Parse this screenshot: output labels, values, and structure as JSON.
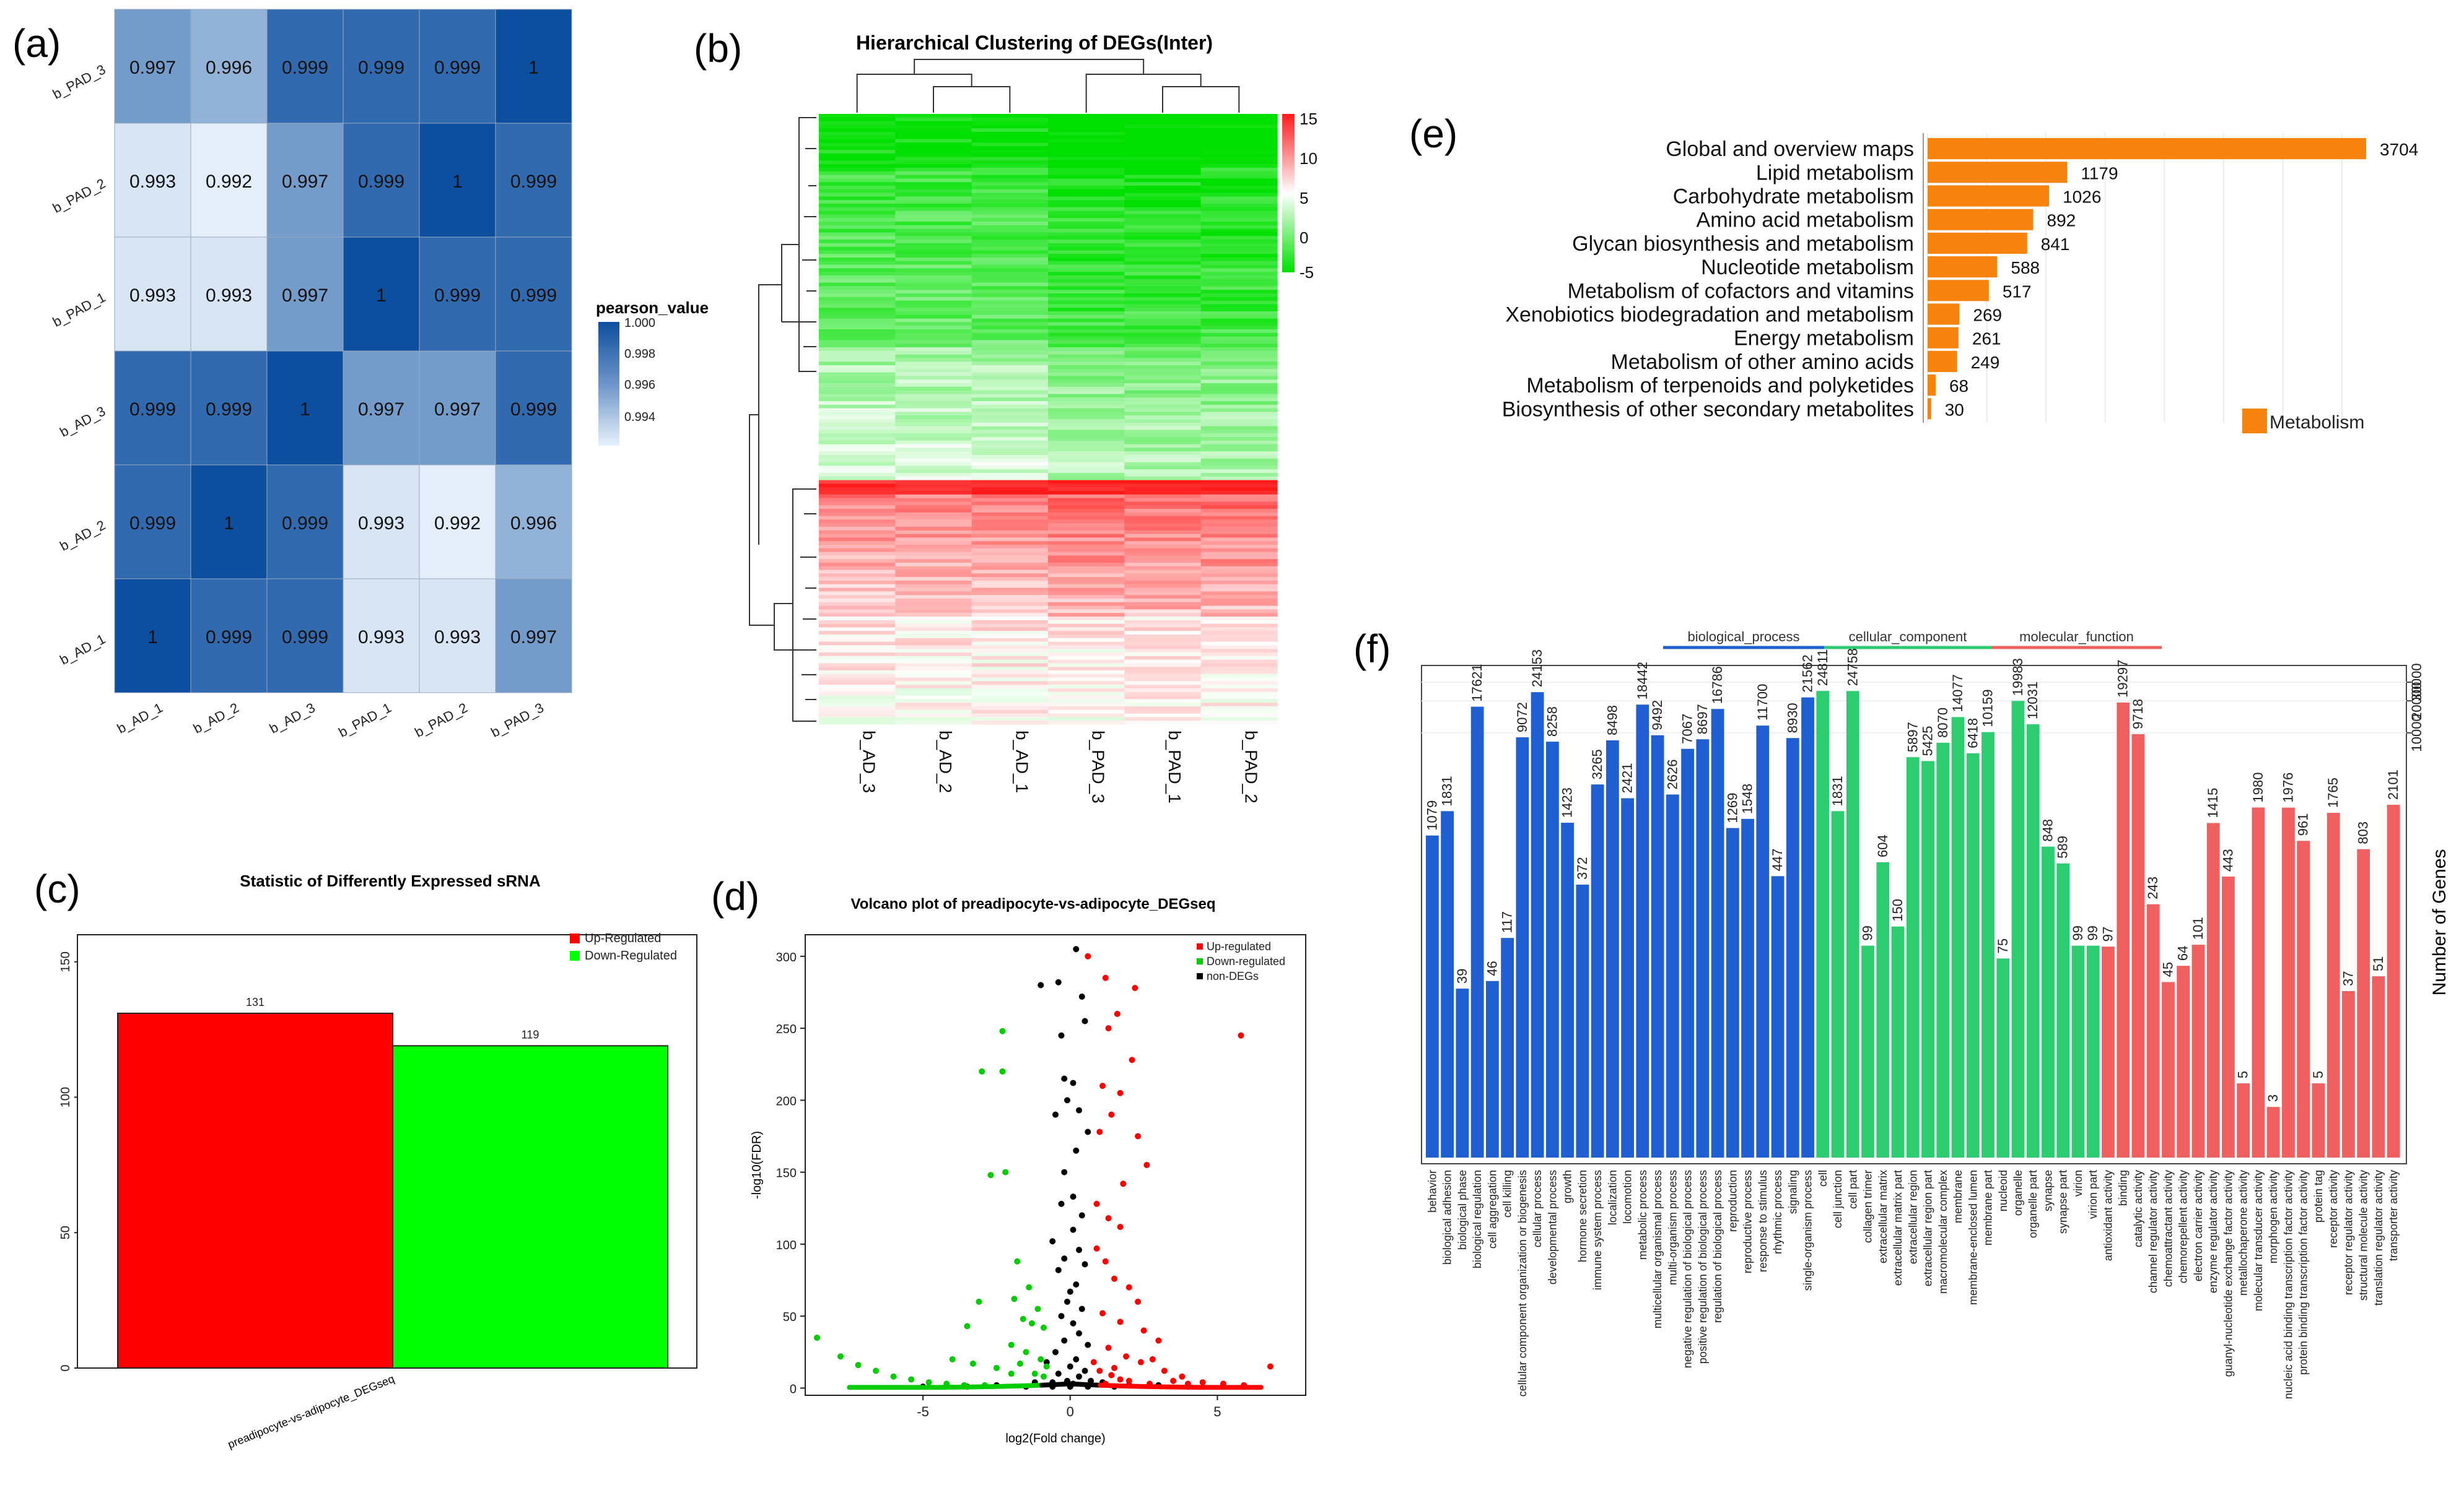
{
  "panels": {
    "a": {
      "label": "(a)",
      "row_labels": [
        "b_PAD_3",
        "b_PAD_2",
        "b_PAD_1",
        "b_AD_3",
        "b_AD_2",
        "b_AD_1"
      ],
      "col_labels": [
        "b_AD_1",
        "b_AD_2",
        "b_AD_3",
        "b_PAD_1",
        "b_PAD_2",
        "b_PAD_3"
      ],
      "matrix": [
        [
          "0.997",
          "0.996",
          "0.999",
          "0.999",
          "0.999",
          "1"
        ],
        [
          "0.993",
          "0.992",
          "0.997",
          "0.999",
          "1",
          "0.999"
        ],
        [
          "0.993",
          "0.993",
          "0.997",
          "1",
          "0.999",
          "0.999"
        ],
        [
          "0.999",
          "0.999",
          "1",
          "0.997",
          "0.997",
          "0.999"
        ],
        [
          "0.999",
          "1",
          "0.999",
          "0.993",
          "0.992",
          "0.996"
        ],
        [
          "1",
          "0.999",
          "0.999",
          "0.993",
          "0.993",
          "0.997"
        ]
      ],
      "legend_title": "pearson_value",
      "legend_ticks": [
        "1.000",
        "0.998",
        "0.996",
        "0.994"
      ],
      "colors": {
        "high": "#0d4f9e",
        "low": "#e6f1fb"
      }
    },
    "b": {
      "label": "(b)",
      "title": "Hierarchical Clustering of DEGs(Inter)",
      "col_labels": [
        "b_AD_3",
        "b_AD_2",
        "b_AD_1",
        "b_PAD_3",
        "b_PAD_1",
        "b_PAD_2"
      ],
      "scale_ticks": [
        "15",
        "10",
        "5",
        "0",
        "-5"
      ],
      "colors": {
        "up": "#ff1a1a",
        "mid": "#ffffff",
        "down": "#00e000"
      }
    },
    "c": {
      "label": "(c)",
      "title": "Statistic of Differently Expressed sRNA",
      "legend": [
        "Up-Regulated",
        "Down-Regulated"
      ],
      "category": "preadipocyte-vs-adipocyte_DEGseq",
      "values": [
        131,
        119
      ],
      "value_labels": [
        "131",
        "119"
      ],
      "yticks": [
        "0",
        "50",
        "100",
        "150"
      ],
      "colors": {
        "up": "#ff0000",
        "down": "#00ff00"
      }
    },
    "d": {
      "label": "(d)",
      "title": "Volcano plot of preadipocyte-vs-adipocyte_DEGseq",
      "xlabel": "log2(Fold change)",
      "ylabel": "-log10(FDR)",
      "xticks": [
        "-5",
        "0",
        "5"
      ],
      "yticks": [
        "0",
        "50",
        "100",
        "150",
        "200",
        "250",
        "300"
      ],
      "legend": [
        "Up-regulated",
        "Down-regulated",
        "non-DEGs"
      ],
      "colors": {
        "up": "#ff0000",
        "down": "#00cc00",
        "non": "#000000"
      }
    },
    "e": {
      "label": "(e)",
      "legend": "Metabolism",
      "color": "#f7830f"
    },
    "f": {
      "label": "(f)",
      "ylabel": "Number of Genes",
      "yticks": [
        "10000",
        "20000",
        "30000"
      ],
      "legend": [
        "biological_process",
        "cellular_component",
        "molecular_function"
      ],
      "colors": {
        "biological_process": "#1f5fd1",
        "cellular_component": "#2ecc71",
        "molecular_function": "#f16060"
      }
    }
  },
  "chart_data": [
    {
      "id": "a",
      "type": "heatmap",
      "title": "",
      "rows": [
        "b_PAD_3",
        "b_PAD_2",
        "b_PAD_1",
        "b_AD_3",
        "b_AD_2",
        "b_AD_1"
      ],
      "columns": [
        "b_AD_1",
        "b_AD_2",
        "b_AD_3",
        "b_PAD_1",
        "b_PAD_2",
        "b_PAD_3"
      ],
      "values": [
        [
          0.997,
          0.996,
          0.999,
          0.999,
          0.999,
          1
        ],
        [
          0.993,
          0.992,
          0.997,
          0.999,
          1,
          0.999
        ],
        [
          0.993,
          0.993,
          0.997,
          1,
          0.999,
          0.999
        ],
        [
          0.999,
          0.999,
          1,
          0.997,
          0.997,
          0.999
        ],
        [
          0.999,
          1,
          0.999,
          0.993,
          0.992,
          0.996
        ],
        [
          1,
          0.999,
          0.999,
          0.993,
          0.993,
          0.997
        ]
      ],
      "colorbar": {
        "title": "pearson_value",
        "range": [
          0.992,
          1.0
        ]
      }
    },
    {
      "id": "b",
      "type": "heatmap",
      "title": "Hierarchical Clustering of DEGs(Inter)",
      "columns": [
        "b_AD_3",
        "b_AD_2",
        "b_AD_1",
        "b_PAD_3",
        "b_PAD_1",
        "b_PAD_2"
      ],
      "colorbar": {
        "range": [
          -5,
          15
        ]
      }
    },
    {
      "id": "c",
      "type": "bar",
      "title": "Statistic of Differently Expressed sRNA",
      "categories": [
        "preadipocyte-vs-adipocyte_DEGseq"
      ],
      "series": [
        {
          "name": "Up-Regulated",
          "values": [
            131
          ]
        },
        {
          "name": "Down-Regulated",
          "values": [
            119
          ]
        }
      ],
      "ylim": [
        0,
        160
      ]
    },
    {
      "id": "d",
      "type": "scatter",
      "title": "Volcano plot of preadipocyte-vs-adipocyte_DEGseq",
      "xlabel": "log2(Fold change)",
      "ylabel": "-log10(FDR)",
      "xlim": [
        -9,
        8
      ],
      "ylim": [
        -5,
        315
      ],
      "series": [
        {
          "name": "Up-regulated",
          "points": [
            [
              0.6,
              300
            ],
            [
              1.2,
              285
            ],
            [
              2.2,
              278
            ],
            [
              1.6,
              260
            ],
            [
              1.3,
              250
            ],
            [
              2.1,
              228
            ],
            [
              1.1,
              210
            ],
            [
              1.7,
              205
            ],
            [
              1.4,
              190
            ],
            [
              2.3,
              175
            ],
            [
              1.0,
              178
            ],
            [
              2.6,
              155
            ],
            [
              1.8,
              142
            ],
            [
              0.9,
              128
            ],
            [
              1.3,
              118
            ],
            [
              1.7,
              112
            ],
            [
              0.9,
              97
            ],
            [
              1.2,
              88
            ],
            [
              1.5,
              76
            ],
            [
              2.0,
              70
            ],
            [
              2.3,
              60
            ],
            [
              1.1,
              52
            ],
            [
              1.7,
              46
            ],
            [
              2.5,
              40
            ],
            [
              3.0,
              33
            ],
            [
              1.3,
              28
            ],
            [
              1.9,
              22
            ],
            [
              2.4,
              18
            ],
            [
              3.2,
              12
            ],
            [
              3.8,
              8
            ],
            [
              4.5,
              4
            ],
            [
              5.2,
              3
            ],
            [
              5.9,
              2
            ],
            [
              6.8,
              15
            ],
            [
              5.8,
              245
            ],
            [
              0.8,
              18
            ],
            [
              1.0,
              12
            ],
            [
              1.4,
              9
            ],
            [
              1.7,
              6
            ],
            [
              2.0,
              5
            ],
            [
              2.7,
              3
            ],
            [
              1.2,
              3
            ],
            [
              1.5,
              14
            ],
            [
              2.8,
              20
            ],
            [
              3.5,
              5
            ],
            [
              4.0,
              3
            ]
          ]
        },
        {
          "name": "Down-regulated",
          "points": [
            [
              -8.6,
              35
            ],
            [
              -7.8,
              22
            ],
            [
              -7.2,
              16
            ],
            [
              -6.6,
              12
            ],
            [
              -6.0,
              8
            ],
            [
              -5.4,
              6
            ],
            [
              -4.8,
              4
            ],
            [
              -4.2,
              3
            ],
            [
              -3.6,
              2
            ],
            [
              -2.9,
              2
            ],
            [
              -3.5,
              43
            ],
            [
              -3.1,
              60
            ],
            [
              -2.7,
              148
            ],
            [
              -3.0,
              220
            ],
            [
              -2.3,
              248
            ],
            [
              -2.2,
              150
            ],
            [
              -1.8,
              88
            ],
            [
              -1.4,
              70
            ],
            [
              -1.9,
              62
            ],
            [
              -1.1,
              55
            ],
            [
              -1.6,
              48
            ],
            [
              -1.3,
              45
            ],
            [
              -0.9,
              42
            ],
            [
              -2.0,
              30
            ],
            [
              -1.5,
              25
            ],
            [
              -1.0,
              20
            ],
            [
              -0.8,
              15
            ],
            [
              -1.2,
              10
            ],
            [
              -2.5,
              14
            ],
            [
              -1.7,
              17
            ],
            [
              -2.3,
              220
            ],
            [
              -4.0,
              20
            ],
            [
              -3.3,
              17
            ],
            [
              -2.0,
              10
            ],
            [
              -0.9,
              8
            ]
          ]
        },
        {
          "name": "non-DEGs",
          "points": [
            [
              0.2,
              305
            ],
            [
              -0.4,
              282
            ],
            [
              -1.0,
              280
            ],
            [
              0.4,
              272
            ],
            [
              0.5,
              255
            ],
            [
              -0.3,
              245
            ],
            [
              -0.2,
              215
            ],
            [
              0.1,
              212
            ],
            [
              -0.1,
              200
            ],
            [
              0.3,
              193
            ],
            [
              -0.5,
              190
            ],
            [
              0.6,
              178
            ],
            [
              0.2,
              165
            ],
            [
              -0.2,
              150
            ],
            [
              0.1,
              133
            ],
            [
              -0.3,
              128
            ],
            [
              0.4,
              120
            ],
            [
              0.1,
              110
            ],
            [
              -0.6,
              102
            ],
            [
              0.3,
              96
            ],
            [
              -0.2,
              90
            ],
            [
              0.5,
              86
            ],
            [
              -0.4,
              82
            ],
            [
              0.2,
              72
            ],
            [
              0.0,
              67
            ],
            [
              -0.1,
              60
            ],
            [
              0.4,
              55
            ],
            [
              -0.3,
              50
            ],
            [
              0.1,
              45
            ],
            [
              0.3,
              38
            ],
            [
              -0.2,
              33
            ],
            [
              0.6,
              30
            ],
            [
              -0.5,
              25
            ],
            [
              0.2,
              20
            ],
            [
              -0.8,
              18
            ],
            [
              0.0,
              15
            ],
            [
              0.5,
              12
            ],
            [
              -0.4,
              10
            ],
            [
              0.3,
              8
            ],
            [
              -0.1,
              5
            ],
            [
              0.1,
              3
            ],
            [
              -0.6,
              4
            ],
            [
              0.7,
              5
            ],
            [
              1.1,
              4
            ],
            [
              -1.2,
              4
            ],
            [
              -2.5,
              2
            ],
            [
              2.0,
              2
            ],
            [
              3.0,
              2
            ],
            [
              -3.5,
              1
            ],
            [
              4.0,
              1
            ],
            [
              -5.0,
              1
            ],
            [
              0.0,
              1
            ],
            [
              0.6,
              1
            ],
            [
              -0.6,
              1
            ],
            [
              1.5,
              1
            ],
            [
              -1.5,
              1
            ]
          ]
        }
      ]
    },
    {
      "id": "e",
      "type": "bar",
      "orientation": "horizontal",
      "categories": [
        "Global and overview maps",
        "Lipid metabolism",
        "Carbohydrate metabolism",
        "Amino acid metabolism",
        "Glycan biosynthesis and metabolism",
        "Nucleotide metabolism",
        "Metabolism of cofactors and vitamins",
        "Xenobiotics biodegradation and metabolism",
        "Energy metabolism",
        "Metabolism of other amino acids",
        "Metabolism of terpenoids and polyketides",
        "Biosynthesis of other secondary metabolites"
      ],
      "values": [
        3704,
        1179,
        1026,
        892,
        841,
        588,
        517,
        269,
        261,
        249,
        68,
        30
      ],
      "value_labels": [
        "3704",
        "1179",
        "1026",
        "892",
        "841",
        "588",
        "517",
        "269",
        "261",
        "249",
        "68",
        "30"
      ],
      "series_name": "Metabolism",
      "xlim": [
        0,
        4000
      ]
    },
    {
      "id": "f",
      "type": "bar",
      "scale": "log",
      "ylabel": "Number of Genes",
      "ylim": [
        1,
        30000
      ],
      "categories": [
        "behavior",
        "biological adhesion",
        "biological phase",
        "biological regulation",
        "cell aggregation",
        "cell killing",
        "cellular component organization or biogenesis",
        "cellular process",
        "developmental process",
        "growth",
        "hormone secretion",
        "immune system process",
        "localization",
        "locomotion",
        "metabolic process",
        "multicellular organismal process",
        "multi-organism process",
        "negative regulation of biological process",
        "positive regulation of biological process",
        "regulation of biological process",
        "reproduction",
        "reproductive process",
        "response to stimulus",
        "rhythmic process",
        "signaling",
        "single-organism process",
        "cell",
        "cell junction",
        "cell part",
        "collagen trimer",
        "extracellular matrix",
        "extracellular matrix part",
        "extracellular region",
        "extracellular region part",
        "macromolecular complex",
        "membrane",
        "membrane-enclosed lumen",
        "membrane part",
        "nucleoid",
        "organelle",
        "organelle part",
        "synapse",
        "synapse part",
        "virion",
        "virion part",
        "antioxidant activity",
        "binding",
        "catalytic activity",
        "channel regulator activity",
        "chemoattractant activity",
        "chemorepellent activity",
        "electron carrier activity",
        "enzyme regulator activity",
        "guanyl-nucleotide exchange factor activity",
        "metallochaperone activity",
        "molecular transducer activity",
        "morphogen activity",
        "nucleic acid binding transcription factor activity",
        "protein binding transcription factor activity",
        "protein tag",
        "receptor activity",
        "receptor regulator activity",
        "structural molecule activity",
        "translation regulator activity",
        "transporter activity"
      ],
      "values": [
        1079,
        1831,
        39,
        17621,
        46,
        117,
        9072,
        24153,
        8258,
        1423,
        372,
        3265,
        8498,
        2421,
        18442,
        9492,
        2626,
        7067,
        8697,
        16786,
        1269,
        1548,
        11700,
        447,
        8930,
        21562,
        24811,
        1831,
        24758,
        99,
        604,
        150,
        5897,
        5425,
        8070,
        14077,
        6418,
        10159,
        75,
        19983,
        12031,
        848,
        589,
        99,
        99,
        97,
        19297,
        9718,
        243,
        45,
        64,
        101,
        1415,
        443,
        5,
        1980,
        3,
        1976,
        961,
        5,
        1765,
        37,
        803,
        51,
        2101
      ],
      "groups": [
        {
          "name": "biological_process",
          "count": 26
        },
        {
          "name": "cellular_component",
          "count": 19
        },
        {
          "name": "molecular_function",
          "count": 20
        }
      ]
    }
  ]
}
